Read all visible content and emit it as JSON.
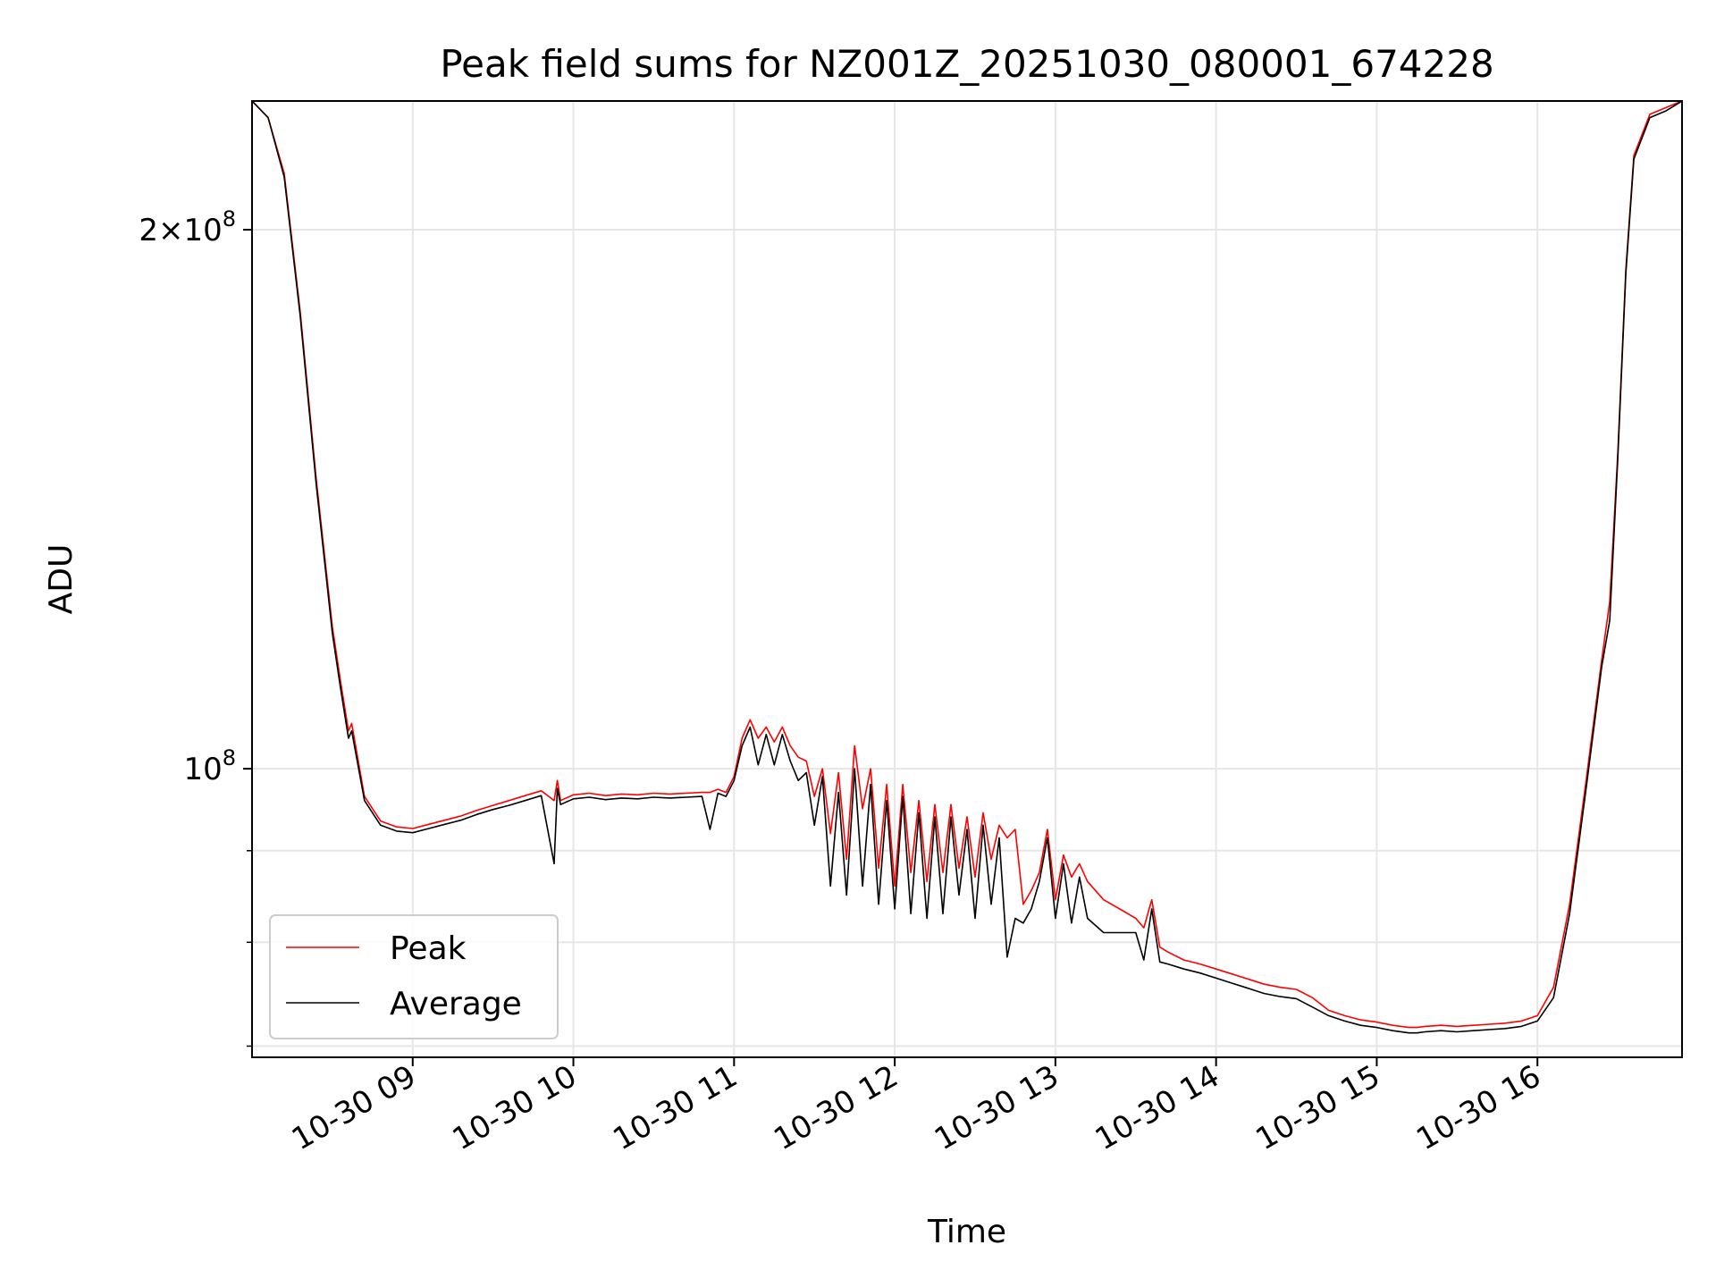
{
  "chart_data": {
    "type": "line",
    "title": "Peak field sums for NZ001Z_20251030_080001_674228",
    "xlabel": "Time",
    "ylabel": "ADU",
    "yscale": "log",
    "xlim": [
      8.0,
      16.9
    ],
    "ylim": [
      69000000,
      236000000
    ],
    "grid": true,
    "legend_position": "lower-left",
    "x_ticks": [
      {
        "value": 9,
        "label": "10-30 09"
      },
      {
        "value": 10,
        "label": "10-30 10"
      },
      {
        "value": 11,
        "label": "10-30 11"
      },
      {
        "value": 12,
        "label": "10-30 12"
      },
      {
        "value": 13,
        "label": "10-30 13"
      },
      {
        "value": 14,
        "label": "10-30 14"
      },
      {
        "value": 15,
        "label": "10-30 15"
      },
      {
        "value": 16,
        "label": "10-30 16"
      }
    ],
    "y_major_ticks": [
      {
        "value": 100000000,
        "base": "10",
        "exp": "8"
      },
      {
        "value": 200000000,
        "mant": "2",
        "base": "10",
        "exp": "8"
      }
    ],
    "y_minor_ticks": [
      70000000,
      80000000,
      90000000
    ],
    "series": [
      {
        "name": "Peak",
        "color": "#ff0000",
        "x": [
          8.0,
          8.1,
          8.2,
          8.3,
          8.4,
          8.5,
          8.55,
          8.6,
          8.62,
          8.7,
          8.8,
          8.9,
          9.0,
          9.1,
          9.2,
          9.3,
          9.4,
          9.5,
          9.6,
          9.7,
          9.8,
          9.88,
          9.9,
          9.92,
          10.0,
          10.1,
          10.2,
          10.3,
          10.4,
          10.5,
          10.6,
          10.7,
          10.8,
          10.85,
          10.9,
          10.95,
          11.0,
          11.05,
          11.1,
          11.15,
          11.2,
          11.25,
          11.3,
          11.35,
          11.4,
          11.45,
          11.5,
          11.55,
          11.6,
          11.65,
          11.7,
          11.75,
          11.8,
          11.85,
          11.9,
          11.95,
          12.0,
          12.05,
          12.1,
          12.15,
          12.2,
          12.25,
          12.3,
          12.35,
          12.4,
          12.45,
          12.5,
          12.55,
          12.6,
          12.65,
          12.7,
          12.75,
          12.8,
          12.85,
          12.9,
          12.95,
          13.0,
          13.05,
          13.1,
          13.15,
          13.2,
          13.3,
          13.4,
          13.5,
          13.55,
          13.6,
          13.65,
          13.7,
          13.8,
          13.9,
          14.0,
          14.1,
          14.2,
          14.3,
          14.4,
          14.5,
          14.6,
          14.7,
          14.8,
          14.9,
          15.0,
          15.1,
          15.2,
          15.25,
          15.3,
          15.4,
          15.5,
          15.6,
          15.7,
          15.8,
          15.9,
          16.0,
          16.1,
          16.2,
          16.3,
          16.4,
          16.45,
          16.5,
          16.55,
          16.6,
          16.7,
          16.8,
          16.9
        ],
        "values": [
          236000000,
          231000000,
          215000000,
          180000000,
          145000000,
          120000000,
          112000000,
          105000000,
          106000000,
          96500000,
          93500000,
          92800000,
          92600000,
          93100000,
          93600000,
          94100000,
          94800000,
          95400000,
          96000000,
          96600000,
          97200000,
          96000000,
          98500000,
          96000000,
          96700000,
          96900000,
          96600000,
          96800000,
          96700000,
          96900000,
          96800000,
          96900000,
          97000000,
          97000000,
          97400000,
          97000000,
          99000000,
          104000000,
          106500000,
          104000000,
          105500000,
          103500000,
          105500000,
          103000000,
          101500000,
          101000000,
          96500000,
          100000000,
          92000000,
          99500000,
          89000000,
          103000000,
          95000000,
          100000000,
          88000000,
          98000000,
          86000000,
          98000000,
          87500000,
          96000000,
          86500000,
          95500000,
          87500000,
          95500000,
          88000000,
          94000000,
          87000000,
          94500000,
          89000000,
          93000000,
          91500000,
          92500000,
          84000000,
          85500000,
          87500000,
          92500000,
          84500000,
          89500000,
          87000000,
          88500000,
          86500000,
          84500000,
          83500000,
          82500000,
          81500000,
          84500000,
          79500000,
          79000000,
          78200000,
          77800000,
          77300000,
          76800000,
          76300000,
          75800000,
          75500000,
          75300000,
          74500000,
          73300000,
          72800000,
          72400000,
          72200000,
          71900000,
          71700000,
          71700000,
          71800000,
          71900000,
          71800000,
          71900000,
          72000000,
          72100000,
          72300000,
          72800000,
          75500000,
          84000000,
          98000000,
          115000000,
          124000000,
          150000000,
          190000000,
          220000000,
          232000000,
          234000000,
          236000000
        ]
      },
      {
        "name": "Average",
        "color": "#000000",
        "x": [
          8.0,
          8.1,
          8.2,
          8.3,
          8.4,
          8.5,
          8.55,
          8.6,
          8.62,
          8.7,
          8.8,
          8.9,
          9.0,
          9.1,
          9.2,
          9.3,
          9.4,
          9.5,
          9.6,
          9.7,
          9.8,
          9.88,
          9.9,
          9.92,
          10.0,
          10.1,
          10.2,
          10.3,
          10.4,
          10.5,
          10.6,
          10.7,
          10.8,
          10.85,
          10.9,
          10.95,
          11.0,
          11.05,
          11.1,
          11.15,
          11.2,
          11.25,
          11.3,
          11.35,
          11.4,
          11.45,
          11.5,
          11.55,
          11.6,
          11.65,
          11.7,
          11.75,
          11.8,
          11.85,
          11.9,
          11.95,
          12.0,
          12.05,
          12.1,
          12.15,
          12.2,
          12.25,
          12.3,
          12.35,
          12.4,
          12.45,
          12.5,
          12.55,
          12.6,
          12.65,
          12.7,
          12.75,
          12.8,
          12.85,
          12.9,
          12.95,
          13.0,
          13.05,
          13.1,
          13.15,
          13.2,
          13.3,
          13.4,
          13.5,
          13.55,
          13.6,
          13.65,
          13.7,
          13.8,
          13.9,
          14.0,
          14.1,
          14.2,
          14.3,
          14.4,
          14.5,
          14.6,
          14.7,
          14.8,
          14.9,
          15.0,
          15.1,
          15.2,
          15.25,
          15.3,
          15.4,
          15.5,
          15.6,
          15.7,
          15.8,
          15.9,
          16.0,
          16.1,
          16.2,
          16.3,
          16.4,
          16.45,
          16.5,
          16.55,
          16.6,
          16.7,
          16.8,
          16.9
        ],
        "values": [
          236000000,
          231000000,
          214000000,
          179000000,
          144000000,
          119000000,
          111000000,
          104000000,
          105000000,
          96000000,
          93000000,
          92300000,
          92100000,
          92600000,
          93100000,
          93600000,
          94300000,
          94900000,
          95400000,
          96000000,
          96600000,
          88500000,
          97500000,
          95500000,
          96200000,
          96400000,
          96100000,
          96300000,
          96200000,
          96400000,
          96300000,
          96400000,
          96500000,
          92500000,
          96900000,
          96500000,
          98500000,
          103000000,
          105500000,
          100500000,
          104500000,
          100500000,
          104500000,
          101000000,
          98500000,
          99500000,
          93000000,
          99000000,
          86000000,
          97000000,
          85000000,
          100000000,
          86000000,
          98000000,
          84000000,
          96000000,
          83500000,
          96500000,
          83000000,
          94500000,
          82500000,
          94000000,
          83000000,
          94000000,
          85000000,
          92500000,
          82500000,
          93000000,
          84000000,
          91500000,
          78500000,
          82500000,
          82000000,
          83500000,
          86500000,
          91500000,
          82500000,
          88500000,
          82000000,
          87000000,
          82500000,
          81000000,
          81000000,
          81000000,
          78200000,
          83500000,
          78000000,
          77800000,
          77300000,
          76900000,
          76400000,
          75900000,
          75400000,
          74900000,
          74600000,
          74400000,
          73600000,
          72800000,
          72300000,
          71900000,
          71700000,
          71400000,
          71200000,
          71200000,
          71300000,
          71400000,
          71300000,
          71400000,
          71500000,
          71600000,
          71800000,
          72300000,
          74500000,
          83000000,
          97000000,
          114000000,
          121000000,
          149000000,
          189000000,
          219000000,
          231000000,
          233000000,
          236000000
        ]
      }
    ]
  }
}
